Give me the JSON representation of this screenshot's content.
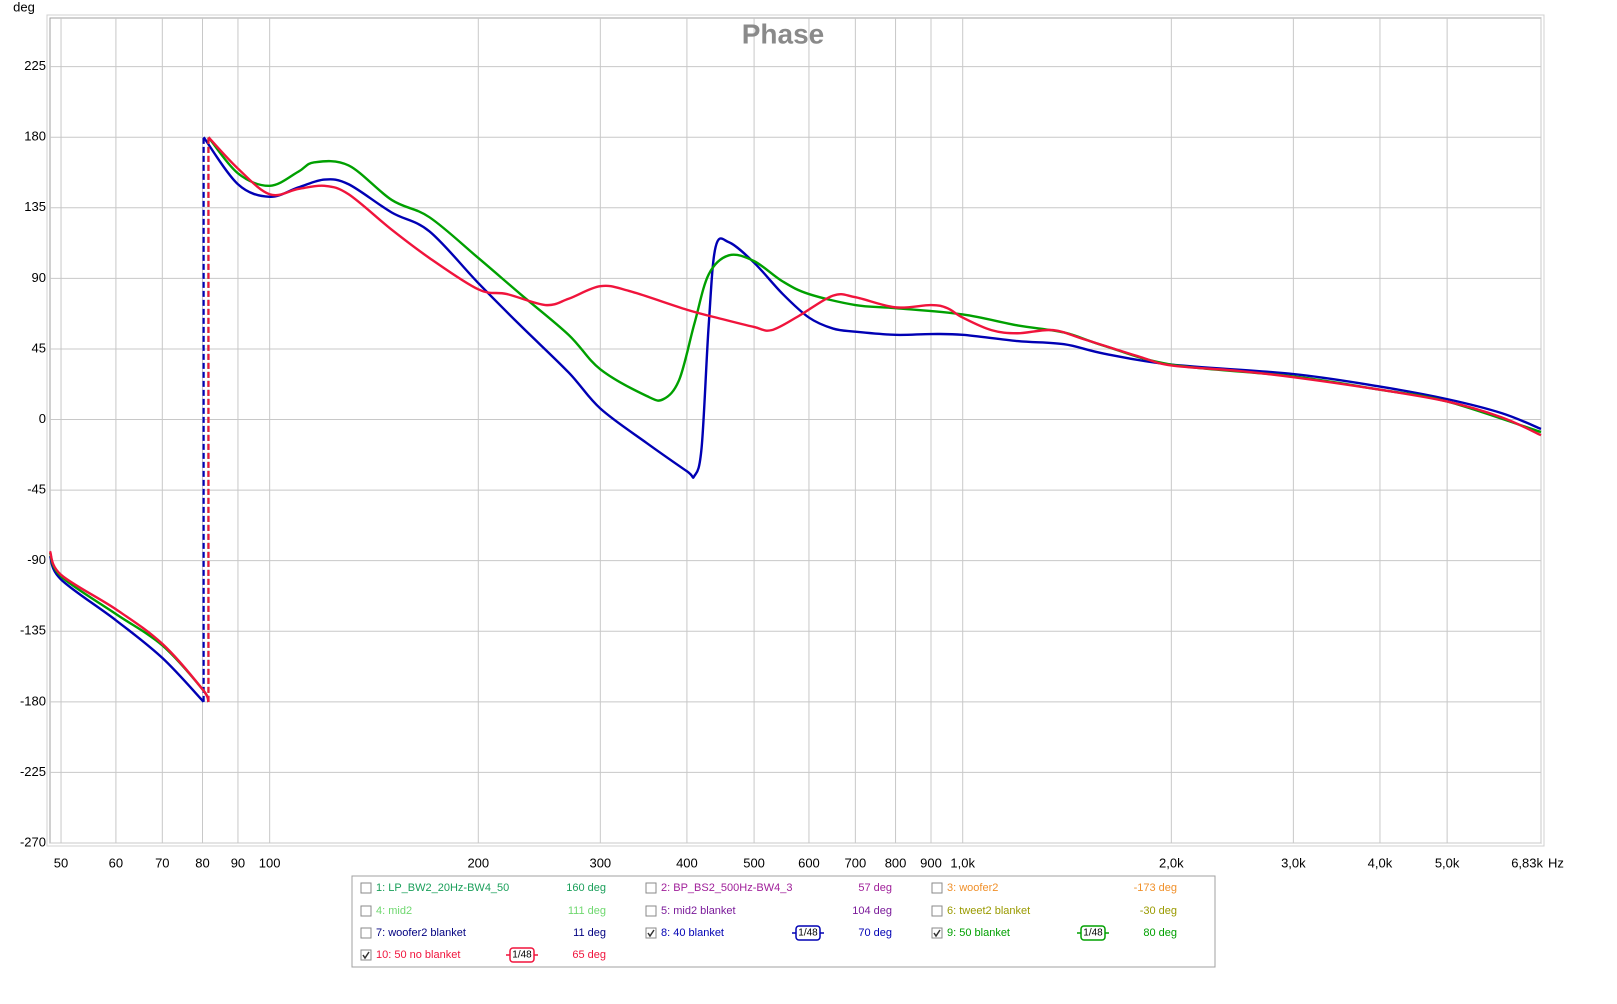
{
  "chart_data": {
    "type": "line",
    "title": "Phase",
    "ylabel": "deg",
    "xlabel": "Hz",
    "xscale": "log",
    "grid": true,
    "xlim": [
      48.2,
      6830
    ],
    "ylim": [
      -270,
      256
    ],
    "yticks": [
      -270,
      -225,
      -180,
      -135,
      -90,
      -45,
      0,
      45,
      90,
      135,
      180,
      225
    ],
    "xticks": [
      50,
      60,
      70,
      80,
      90,
      100,
      200,
      300,
      400,
      500,
      600,
      700,
      800,
      900,
      {
        "value": 1000,
        "label": "1,0k"
      },
      {
        "value": 2000,
        "label": "2,0k"
      },
      {
        "value": 3000,
        "label": "3,0k"
      },
      {
        "value": 4000,
        "label": "4,0k"
      },
      {
        "value": 5000,
        "label": "5,0k"
      },
      {
        "value": 6830,
        "label": "6,83k"
      }
    ],
    "series": [
      {
        "name": "1: LP_BW2_20Hz-BW4_50",
        "color": "#1a9f5a",
        "checked": false,
        "readout": "160 deg"
      },
      {
        "name": "2: BP_BS2_500Hz-BW4_3",
        "color": "#a0209a",
        "checked": false,
        "readout": "57 deg"
      },
      {
        "name": "3: woofer2",
        "color": "#f0902a",
        "checked": false,
        "readout": "-173 deg"
      },
      {
        "name": "4: mid2",
        "color": "#6fd86f",
        "checked": false,
        "readout": "111 deg"
      },
      {
        "name": "5: mid2 blanket",
        "color": "#7a1a9a",
        "checked": false,
        "readout": "104 deg"
      },
      {
        "name": "6: tweet2 blanket",
        "color": "#9a9a00",
        "checked": false,
        "readout": "-30 deg"
      },
      {
        "name": "7: woofer2 blanket",
        "color": "#000080",
        "checked": false,
        "readout": "11 deg"
      },
      {
        "name": "8: 40 blanket",
        "color": "#0000b4",
        "checked": true,
        "readout": "70 deg",
        "smoothing": "1/48",
        "x": [
          48.2,
          50,
          60,
          70,
          80.3,
          80.3,
          80.3,
          90,
          100,
          110,
          120,
          130,
          150,
          170,
          200,
          230,
          270,
          300,
          350,
          400,
          410,
          420,
          430,
          440,
          460,
          500,
          550,
          600,
          650,
          700,
          800,
          900,
          1000,
          1200,
          1400,
          1600,
          2000,
          3000,
          4000,
          5000,
          6000,
          6830
        ],
        "values": [
          -87,
          -102,
          -128,
          -152,
          -180,
          null,
          180,
          150,
          142,
          148,
          153,
          150,
          132,
          120,
          87,
          60,
          30,
          7,
          -15,
          -33,
          -36,
          -18,
          60,
          110,
          113,
          100,
          80,
          65,
          58,
          56,
          54,
          54.5,
          54,
          50,
          48,
          42,
          35,
          29,
          21,
          13,
          4,
          -6
        ]
      },
      {
        "name": "9: 50 blanket",
        "color": "#00a000",
        "checked": true,
        "readout": "80 deg",
        "smoothing": "1/48",
        "x": [
          48.2,
          50,
          60,
          70,
          80,
          81.6,
          81.6,
          81.6,
          90,
          100,
          110,
          116,
          130,
          150,
          170,
          200,
          230,
          270,
          300,
          350,
          370,
          390,
          410,
          430,
          460,
          500,
          550,
          600,
          700,
          800,
          1000,
          1200,
          1400,
          1600,
          2000,
          3000,
          4000,
          5000,
          6830
        ],
        "values": [
          -85,
          -100,
          -124,
          -144,
          -172,
          -180,
          null,
          180,
          157,
          149,
          158,
          164,
          162,
          140,
          129,
          103,
          80,
          54,
          32,
          15,
          13,
          25.5,
          61,
          92.5,
          104.7,
          101,
          88,
          80,
          73,
          71,
          67,
          60,
          55.5,
          47,
          35,
          27.5,
          19,
          11.5,
          -8
        ]
      },
      {
        "name": "10: 50 no blanket",
        "color": "#f0143c",
        "checked": true,
        "readout": "65 deg",
        "smoothing": "1/48",
        "x": [
          48.2,
          50,
          60,
          70,
          80,
          81.6,
          81.6,
          81.6,
          90,
          100,
          110,
          120,
          130,
          150,
          170,
          200,
          220,
          250,
          270,
          300,
          330,
          400,
          450,
          500,
          530,
          580,
          650,
          700,
          800,
          900,
          950,
          1000,
          1100,
          1200,
          1350,
          1500,
          1800,
          2000,
          2500,
          3000,
          4000,
          5000,
          6000,
          6830
        ],
        "values": [
          -84,
          -99,
          -121,
          -143,
          -172,
          -180,
          null,
          180,
          160,
          143.6,
          147,
          149,
          143.6,
          121,
          103,
          83,
          80,
          73,
          77,
          85,
          82,
          70,
          64,
          59,
          57,
          66,
          79,
          78,
          71.5,
          73,
          71,
          65,
          57,
          55,
          57,
          51,
          40,
          34.5,
          31,
          27,
          19,
          11.5,
          1.3,
          -10
        ]
      }
    ]
  }
}
